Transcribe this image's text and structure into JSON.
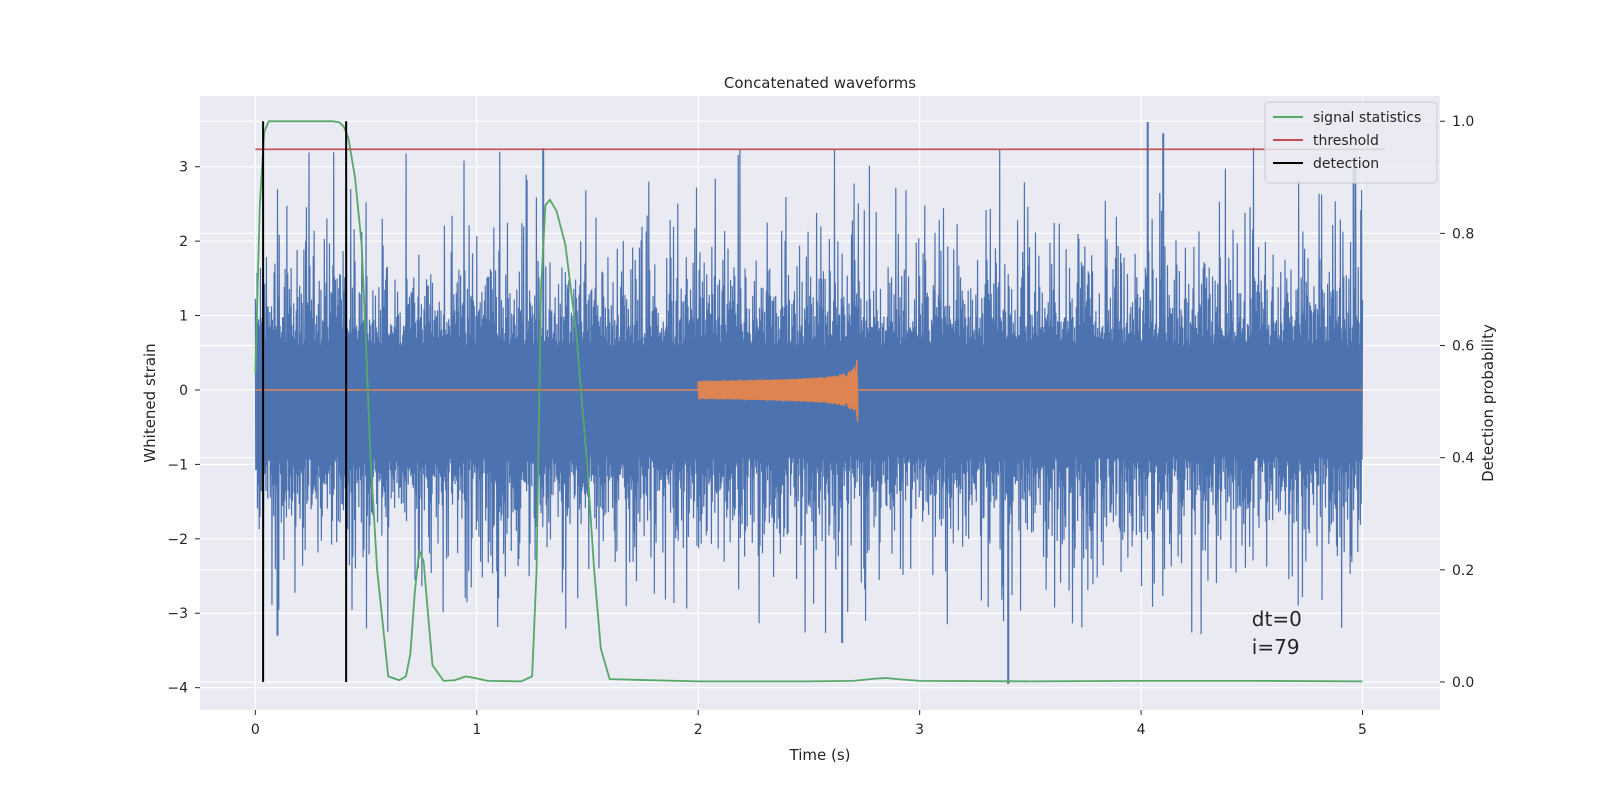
{
  "chart_data": {
    "type": "line",
    "title": "Concatenated waveforms",
    "xlabel": "Time (s)",
    "ylabel_left": "Whitened strain",
    "ylabel_right": "Detection probability",
    "xlim": [
      -0.25,
      5.35
    ],
    "ylim_left": [
      -4.3,
      3.95
    ],
    "ylim_right": [
      -0.05,
      1.045
    ],
    "x_ticks": [
      0,
      1,
      2,
      3,
      4,
      5
    ],
    "y_left_ticks": [
      -4,
      -3,
      -2,
      -1,
      0,
      1,
      2,
      3
    ],
    "y_right_ticks": [
      0.0,
      0.2,
      0.4,
      0.6,
      0.8,
      1.0
    ],
    "grid": true,
    "legend_position": "top-right",
    "legend": [
      {
        "label": "signal statistics",
        "color": "#55a868"
      },
      {
        "label": "threshold",
        "color": "#c44e52"
      },
      {
        "label": "detection",
        "color": "#000000"
      }
    ],
    "series": [
      {
        "role": "whitened-strain-noise",
        "axis": "left",
        "color": "#4c72b0",
        "x_range": [
          0,
          5
        ],
        "core_band": [
          -0.9,
          0.6
        ],
        "typical_extremes": [
          -3.3,
          3.2
        ],
        "notable_spikes": [
          {
            "x": 4.03,
            "y": 3.6
          },
          {
            "x": 4.1,
            "y": 3.45
          },
          {
            "x": 4.96,
            "y": 3.0
          },
          {
            "x": 3.4,
            "y": -3.95
          },
          {
            "x": 2.65,
            "y": -3.4
          },
          {
            "x": 0.1,
            "y": -3.3
          },
          {
            "x": 1.3,
            "y": 3.25
          }
        ]
      },
      {
        "role": "injected-chirp",
        "axis": "left",
        "color": "#dd8452",
        "x_range": [
          0,
          5
        ],
        "chirp_start": 2.0,
        "chirp_end": 2.72,
        "start_amplitude": 0.12,
        "peak_amplitude": 0.62
      },
      {
        "name": "signal statistics",
        "axis": "right",
        "color": "#55a868",
        "x": [
          0.0,
          0.02,
          0.04,
          0.06,
          0.08,
          0.1,
          0.15,
          0.2,
          0.25,
          0.3,
          0.35,
          0.38,
          0.4,
          0.42,
          0.45,
          0.48,
          0.5,
          0.52,
          0.55,
          0.6,
          0.65,
          0.68,
          0.7,
          0.72,
          0.74,
          0.76,
          0.78,
          0.8,
          0.85,
          0.9,
          0.95,
          0.98,
          1.05,
          1.2,
          1.25,
          1.27,
          1.29,
          1.31,
          1.33,
          1.36,
          1.4,
          1.45,
          1.5,
          1.53,
          1.56,
          1.6,
          2.0,
          2.5,
          2.7,
          2.8,
          2.85,
          2.9,
          3.0,
          3.5,
          4.0,
          4.5,
          5.0
        ],
        "y": [
          0.55,
          0.85,
          0.98,
          1.0,
          1.0,
          1.0,
          1.0,
          1.0,
          1.0,
          1.0,
          1.0,
          0.998,
          0.99,
          0.97,
          0.9,
          0.78,
          0.6,
          0.4,
          0.2,
          0.01,
          0.003,
          0.01,
          0.05,
          0.16,
          0.235,
          0.215,
          0.12,
          0.03,
          0.002,
          0.003,
          0.01,
          0.008,
          0.002,
          0.001,
          0.01,
          0.2,
          0.7,
          0.85,
          0.86,
          0.84,
          0.78,
          0.62,
          0.38,
          0.2,
          0.06,
          0.005,
          0.001,
          0.001,
          0.002,
          0.006,
          0.007,
          0.005,
          0.002,
          0.001,
          0.002,
          0.002,
          0.001
        ]
      },
      {
        "name": "threshold",
        "axis": "right",
        "color": "#c44e52",
        "x": [
          0,
          5.1
        ],
        "y": [
          0.95,
          0.95
        ]
      },
      {
        "name": "detection",
        "axis": "right",
        "color": "#000000",
        "type": "vline",
        "x": [
          0.035,
          0.41
        ],
        "y_span": [
          0.0,
          1.0
        ]
      }
    ],
    "annotations": [
      {
        "text": "dt=0",
        "x": 4.5,
        "y_right": 0.1
      },
      {
        "text": "i=79",
        "x": 4.5,
        "y_right": 0.05
      }
    ]
  }
}
